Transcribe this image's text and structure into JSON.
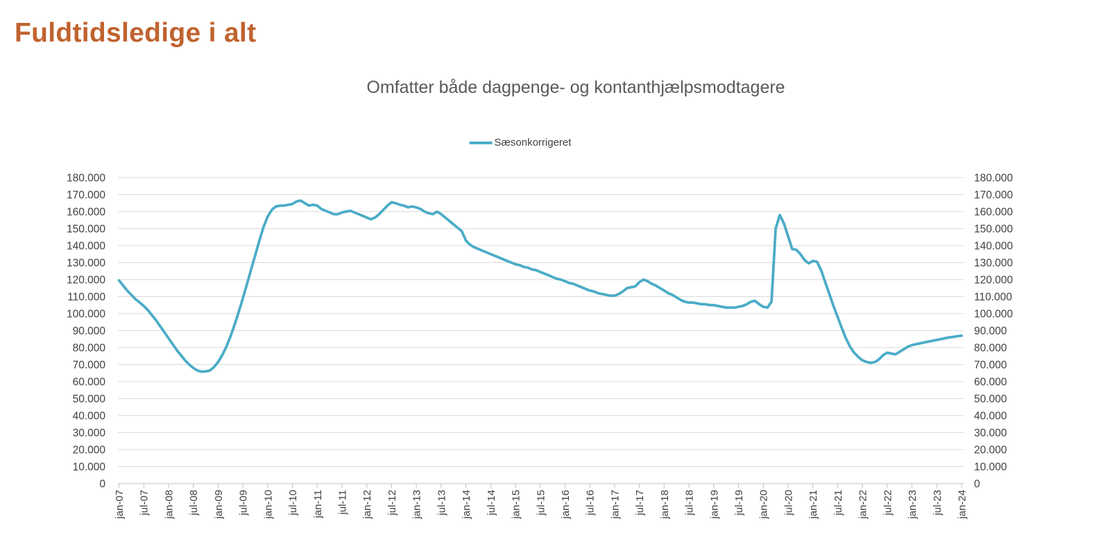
{
  "page": {
    "title": "Fuldtidsledige i alt",
    "title_color": "#C0632E",
    "background": "#FFFFFF"
  },
  "chart_data": {
    "type": "line",
    "title": "Omfatter både dagpenge- og kontanthjælpsmodtagere",
    "legend": [
      {
        "label": "Sæsonkorrigeret",
        "color": "#4BACC6"
      }
    ],
    "legend_position": "top-center",
    "grid": "horizontal",
    "grid_color": "#D9D9D9",
    "axis_color": "#BFBFBF",
    "axis_text_color": "#404040",
    "dual_y_axis": true,
    "ylim": [
      0,
      180000
    ],
    "y_tick_step": 10000,
    "y_tick_labels": [
      "0",
      "10.000",
      "20.000",
      "30.000",
      "40.000",
      "50.000",
      "60.000",
      "70.000",
      "80.000",
      "90.000",
      "100.000",
      "110.000",
      "120.000",
      "130.000",
      "140.000",
      "150.000",
      "160.000",
      "170.000",
      "180.000"
    ],
    "x_frequency": "monthly",
    "x_start": "jan-07",
    "x_end": "jan-24",
    "x_tick_labels": [
      "jan-07",
      "jul-07",
      "jan-08",
      "jul-08",
      "jan-09",
      "jul-09",
      "jan-10",
      "jul-10",
      "jan-11",
      "jul-11",
      "jan-12",
      "jul-12",
      "jan-13",
      "jul-13",
      "jan-14",
      "jul-14",
      "jan-15",
      "jul-15",
      "jan-16",
      "jul-16",
      "jan-17",
      "jul-17",
      "jan-18",
      "jul-18",
      "jan-19",
      "jul-19",
      "jan-20",
      "jul-20",
      "jan-21",
      "jul-21",
      "jan-22",
      "jul-22",
      "jan-23",
      "jul-23",
      "jan-24"
    ],
    "unit": "persons",
    "series": [
      {
        "name": "Sæsonkorrigeret",
        "color": "#4BACC6",
        "values": [
          119500,
          116500,
          113500,
          111000,
          108500,
          106500,
          104500,
          102000,
          99000,
          96000,
          92500,
          89000,
          85500,
          82000,
          78500,
          75500,
          72500,
          70000,
          68000,
          66500,
          65800,
          66000,
          66500,
          68500,
          71500,
          75500,
          80500,
          86500,
          93500,
          101000,
          109000,
          117500,
          126000,
          134500,
          143000,
          151000,
          157000,
          161000,
          163000,
          163500,
          163500,
          164000,
          164500,
          166000,
          166500,
          165000,
          163500,
          164000,
          163500,
          161500,
          160500,
          159500,
          158500,
          158500,
          159500,
          160000,
          160500,
          159500,
          158500,
          157500,
          156500,
          155500,
          156500,
          158500,
          161000,
          163500,
          165500,
          165000,
          164000,
          163500,
          162500,
          163000,
          162500,
          161500,
          160000,
          159000,
          158500,
          160000,
          158500,
          156500,
          154500,
          152500,
          150500,
          148500,
          143000,
          140500,
          139000,
          138000,
          137000,
          136000,
          135000,
          134000,
          133000,
          132000,
          131000,
          130000,
          129000,
          128500,
          127500,
          127000,
          126000,
          125500,
          124500,
          123500,
          122500,
          121500,
          120500,
          120000,
          119000,
          118000,
          117500,
          116500,
          115500,
          114500,
          113500,
          113000,
          112000,
          111500,
          111000,
          110500,
          110500,
          111500,
          113000,
          115000,
          115500,
          116000,
          118500,
          120000,
          119000,
          117500,
          116500,
          115000,
          113500,
          112000,
          111000,
          109500,
          108000,
          107000,
          106500,
          106500,
          106000,
          105500,
          105500,
          105000,
          105000,
          104500,
          104000,
          103500,
          103500,
          103500,
          104000,
          104500,
          105500,
          107000,
          107500,
          105500,
          104000,
          103500,
          107000,
          150000,
          158000,
          153000,
          145500,
          138000,
          137500,
          135000,
          131500,
          129500,
          131000,
          130500,
          125500,
          118500,
          111500,
          104500,
          98000,
          91500,
          85500,
          80500,
          77000,
          74500,
          72500,
          71500,
          71000,
          71500,
          73000,
          75500,
          77000,
          76500,
          76000,
          77500,
          79000,
          80500,
          81500,
          82000,
          82500,
          83000,
          83500,
          84000,
          84500,
          85000,
          85500,
          86000,
          86300,
          86700,
          87000
        ]
      }
    ]
  }
}
